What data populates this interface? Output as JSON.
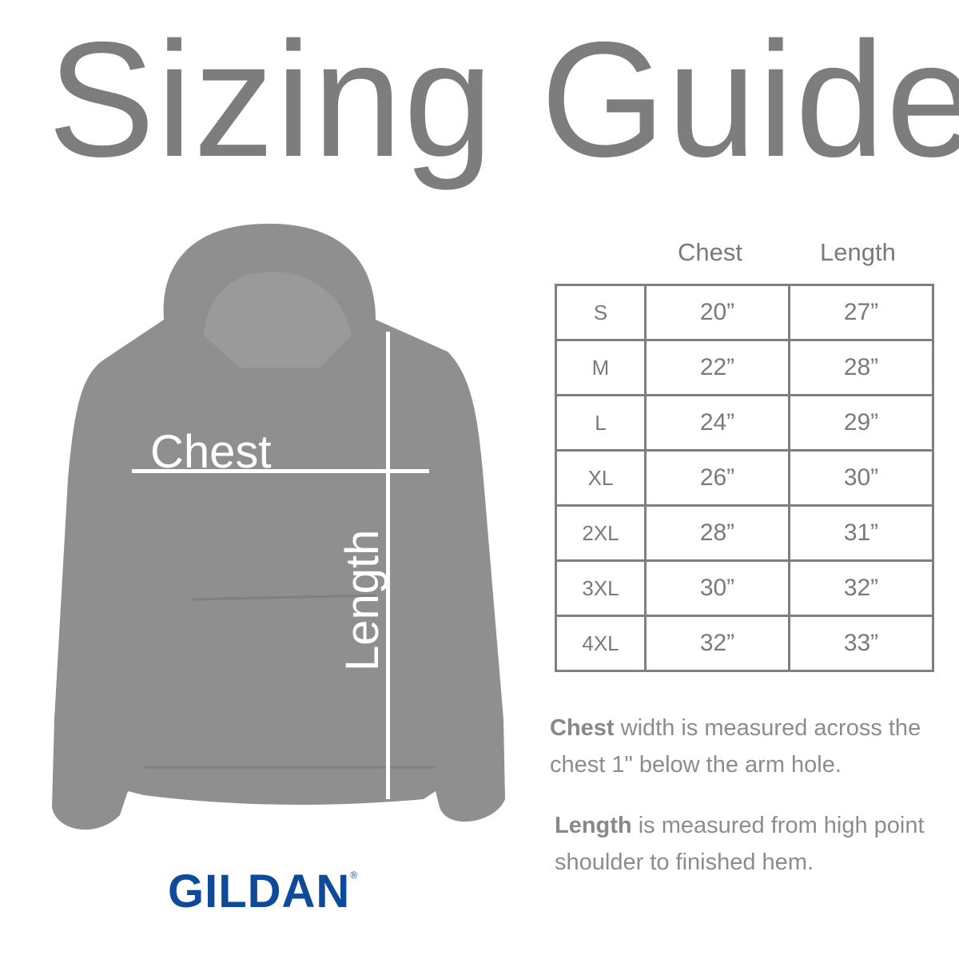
{
  "title": "Sizing Guide",
  "diagram": {
    "chest_label": "Chest",
    "length_label": "Length",
    "garment_color": "#8f8f8f"
  },
  "logo": {
    "text": "GILDAN",
    "mark": "®",
    "color": "#0e4a9a"
  },
  "table": {
    "headers": [
      "Chest",
      "Length"
    ],
    "rows": [
      {
        "size": "S",
        "chest": "20”",
        "length": "27”"
      },
      {
        "size": "M",
        "chest": "22”",
        "length": "28”"
      },
      {
        "size": "L",
        "chest": "24”",
        "length": "29”"
      },
      {
        "size": "XL",
        "chest": "26”",
        "length": "30”"
      },
      {
        "size": "2XL",
        "chest": "28”",
        "length": "31”"
      },
      {
        "size": "3XL",
        "chest": "30”",
        "length": "32”"
      },
      {
        "size": "4XL",
        "chest": "32”",
        "length": "33”"
      }
    ]
  },
  "notes": {
    "chest_term": "Chest",
    "chest_text": " width is measured across the chest 1\" below the arm hole.",
    "length_term": "Length",
    "length_text": " is measured from high point shoulder to finished hem."
  }
}
